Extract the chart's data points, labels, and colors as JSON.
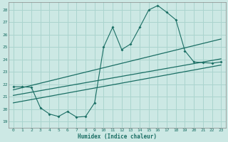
{
  "xlabel": "Humidex (Indice chaleur)",
  "background_color": "#cce8e4",
  "grid_color": "#aad4ce",
  "line_color": "#1a6e64",
  "xlim": [
    -0.5,
    23.5
  ],
  "ylim": [
    18.5,
    28.6
  ],
  "yticks": [
    19,
    20,
    21,
    22,
    23,
    24,
    25,
    26,
    27,
    28
  ],
  "xticks": [
    0,
    1,
    2,
    3,
    4,
    5,
    6,
    7,
    8,
    9,
    10,
    11,
    12,
    13,
    14,
    15,
    16,
    17,
    18,
    19,
    20,
    21,
    22,
    23
  ],
  "main_x": [
    0,
    1,
    2,
    3,
    4,
    5,
    6,
    7,
    8,
    9,
    10,
    11,
    12,
    13,
    14,
    15,
    16,
    17,
    18,
    19,
    20,
    21,
    22,
    23
  ],
  "main_y": [
    21.8,
    21.8,
    21.75,
    20.1,
    19.6,
    19.4,
    19.8,
    19.35,
    19.4,
    20.5,
    25.0,
    26.6,
    24.8,
    25.25,
    26.6,
    28.0,
    28.35,
    27.8,
    27.2,
    24.7,
    23.8,
    23.75,
    23.7,
    23.8
  ],
  "line1_x": [
    0,
    23
  ],
  "line1_y": [
    21.55,
    25.65
  ],
  "line2_x": [
    0,
    23
  ],
  "line2_y": [
    21.1,
    24.05
  ],
  "line3_x": [
    0,
    23
  ],
  "line3_y": [
    20.5,
    23.55
  ]
}
